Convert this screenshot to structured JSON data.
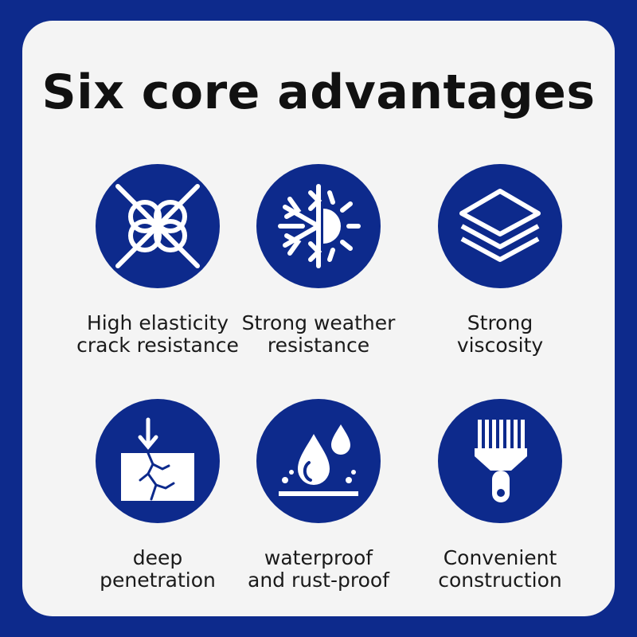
{
  "title": "Six core advantages",
  "brand_color": "#0d2a8c",
  "advantages": [
    {
      "icon": "knot-icon",
      "lines": [
        "High elasticity",
        "crack resistance"
      ]
    },
    {
      "icon": "snowflake-sun-icon",
      "lines": [
        "Strong weather",
        "resistance"
      ]
    },
    {
      "icon": "layers-icon",
      "lines": [
        "Strong",
        "viscosity"
      ]
    },
    {
      "icon": "penetration-icon",
      "lines": [
        "deep",
        "penetration"
      ]
    },
    {
      "icon": "water-drops-icon",
      "lines": [
        "waterproof",
        "and rust-proof"
      ]
    },
    {
      "icon": "paint-brush-icon",
      "lines": [
        "Convenient",
        "construction"
      ]
    }
  ]
}
